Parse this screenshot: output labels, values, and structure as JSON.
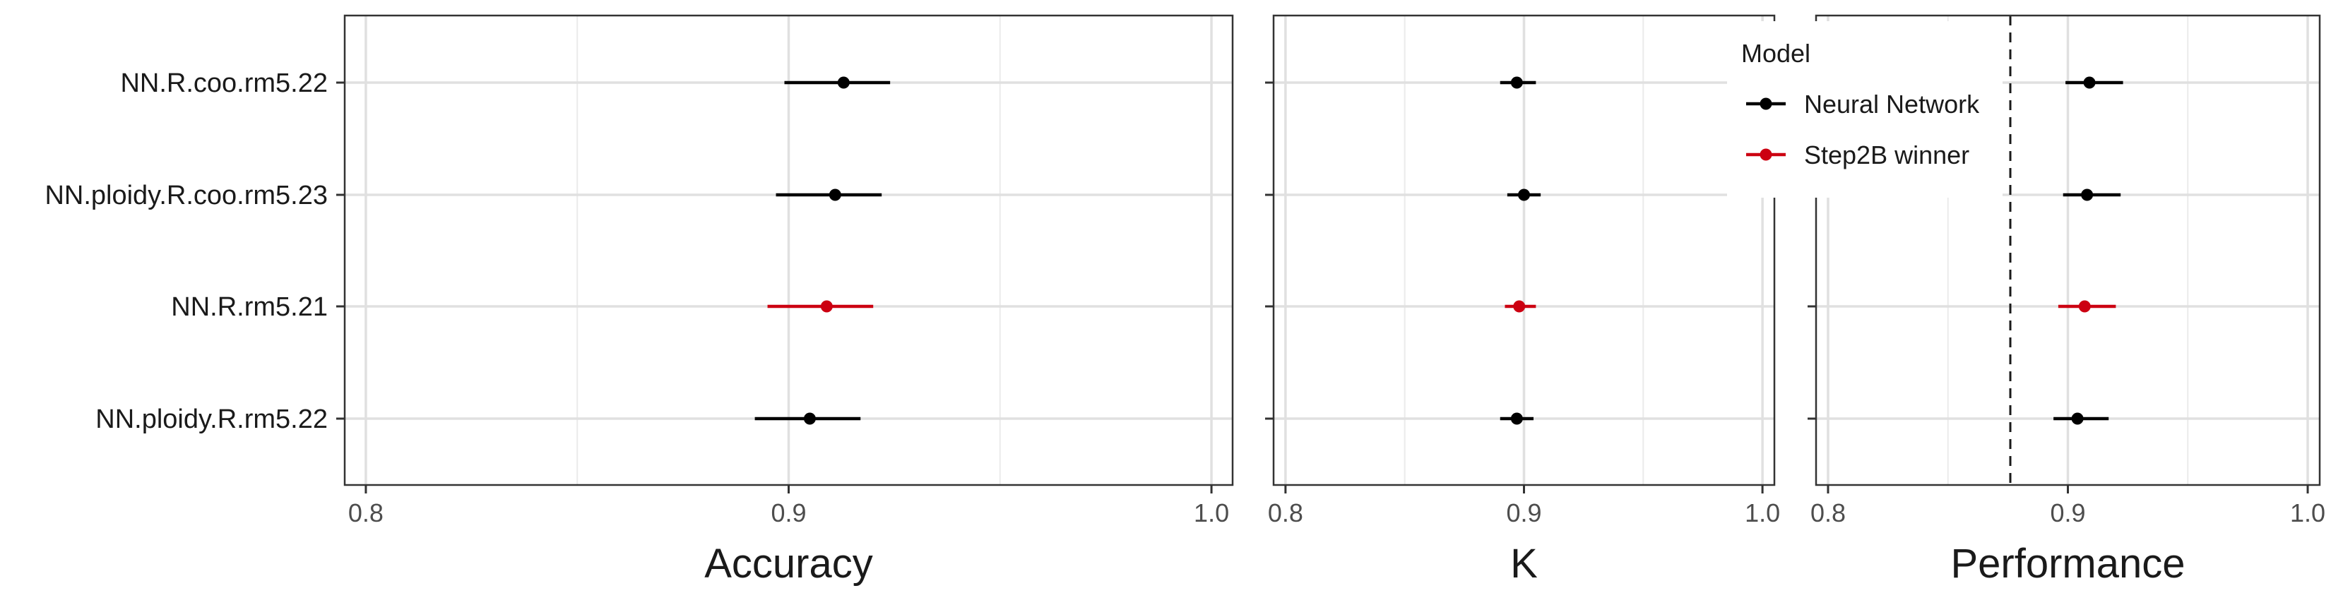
{
  "chart_data": {
    "type": "forest",
    "categories": [
      "NN.R.coo.rm5.22",
      "NN.ploidy.R.coo.rm5.23",
      "NN.R.rm5.21",
      "NN.ploidy.R.rm5.22"
    ],
    "panels": [
      {
        "xlabel": "Accuracy",
        "xlim": [
          0.795,
          1.005
        ],
        "ticks": [
          0.8,
          0.9,
          1.0
        ],
        "tick_labels": [
          "0.8",
          "0.9",
          "1.0"
        ],
        "points": [
          {
            "category": "NN.R.coo.rm5.22",
            "model": "Neural Network",
            "value": 0.913,
            "low": 0.899,
            "high": 0.924
          },
          {
            "category": "NN.ploidy.R.coo.rm5.23",
            "model": "Neural Network",
            "value": 0.911,
            "low": 0.897,
            "high": 0.922
          },
          {
            "category": "NN.R.rm5.21",
            "model": "Step2B winner",
            "value": 0.909,
            "low": 0.895,
            "high": 0.92
          },
          {
            "category": "NN.ploidy.R.rm5.22",
            "model": "Neural Network",
            "value": 0.905,
            "low": 0.892,
            "high": 0.917
          }
        ]
      },
      {
        "xlabel": "K",
        "xlim": [
          0.795,
          1.005
        ],
        "ticks": [
          0.8,
          0.9,
          1.0
        ],
        "tick_labels": [
          "0.8",
          "0.9",
          "1.0"
        ],
        "points": [
          {
            "category": "NN.R.coo.rm5.22",
            "model": "Neural Network",
            "value": 0.897,
            "low": 0.89,
            "high": 0.905
          },
          {
            "category": "NN.ploidy.R.coo.rm5.23",
            "model": "Neural Network",
            "value": 0.9,
            "low": 0.893,
            "high": 0.907
          },
          {
            "category": "NN.R.rm5.21",
            "model": "Step2B winner",
            "value": 0.898,
            "low": 0.892,
            "high": 0.905
          },
          {
            "category": "NN.ploidy.R.rm5.22",
            "model": "Neural Network",
            "value": 0.897,
            "low": 0.89,
            "high": 0.904
          }
        ]
      },
      {
        "xlabel": "Performance",
        "xlim": [
          0.795,
          1.005
        ],
        "ticks": [
          0.8,
          0.9,
          1.0
        ],
        "tick_labels": [
          "0.8",
          "0.9",
          "1.0"
        ],
        "reference_line": 0.876,
        "points": [
          {
            "category": "NN.R.coo.rm5.22",
            "model": "Neural Network",
            "value": 0.909,
            "low": 0.899,
            "high": 0.923
          },
          {
            "category": "NN.ploidy.R.coo.rm5.23",
            "model": "Neural Network",
            "value": 0.908,
            "low": 0.898,
            "high": 0.922
          },
          {
            "category": "NN.R.rm5.21",
            "model": "Step2B winner",
            "value": 0.907,
            "low": 0.896,
            "high": 0.92
          },
          {
            "category": "NN.ploidy.R.rm5.22",
            "model": "Neural Network",
            "value": 0.904,
            "low": 0.894,
            "high": 0.917
          }
        ]
      }
    ],
    "legend": {
      "title": "Model",
      "position": "top-right",
      "entries": [
        {
          "label": "Neural Network",
          "color": "#000000"
        },
        {
          "label": "Step2B winner",
          "color": "#cc0011"
        }
      ]
    },
    "grid": true
  }
}
